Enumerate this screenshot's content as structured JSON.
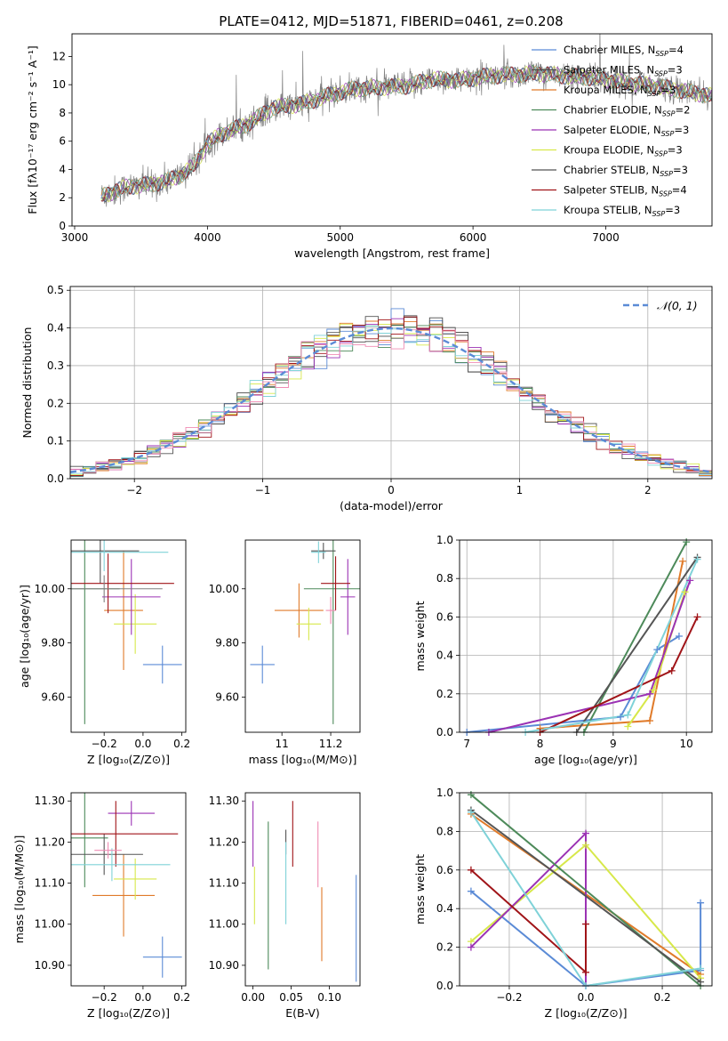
{
  "figure": {
    "title": "PLATE=0412, MJD=51871, FIBERID=0461, z=0.208"
  },
  "models": [
    {
      "name": "Chabrier MILES",
      "nssp": "4",
      "color": "#5b8bd6"
    },
    {
      "name": "Salpeter MILES",
      "nssp": "3",
      "color": "#4a4a4a"
    },
    {
      "name": "Kroupa MILES",
      "nssp": "3",
      "color": "#e07b2a"
    },
    {
      "name": "Chabrier ELODIE",
      "nssp": "2",
      "color": "#4d8a5a"
    },
    {
      "name": "Salpeter ELODIE",
      "nssp": "3",
      "color": "#9b32b4"
    },
    {
      "name": "Kroupa ELODIE",
      "nssp": "3",
      "color": "#d7e84a"
    },
    {
      "name": "Chabrier STELIB",
      "nssp": "3",
      "color": "#555555"
    },
    {
      "name": "Salpeter STELIB",
      "nssp": "4",
      "color": "#a01418"
    },
    {
      "name": "Kroupa STELIB",
      "nssp": "3",
      "color": "#7fd2d8"
    }
  ],
  "chart_data": [
    {
      "id": "spectrum",
      "type": "line",
      "xlabel": "wavelength [Angstrom, rest frame]",
      "ylabel": "Flux [fλ10⁻¹⁷ erg cm⁻² s⁻¹ A⁻¹]",
      "xlim": [
        2980,
        7800
      ],
      "ylim": [
        0,
        13.6
      ],
      "xticks": [
        3000,
        4000,
        5000,
        6000,
        7000
      ],
      "yticks": [
        0,
        2,
        4,
        6,
        8,
        10,
        12
      ],
      "data_range": [
        3200,
        7800
      ],
      "data_color": "#808080",
      "continuum": {
        "x": [
          3200,
          3400,
          3550,
          3700,
          3800,
          3900,
          4000,
          4100,
          4300,
          4500,
          4700,
          4900,
          5100,
          5300,
          5500,
          5700,
          5900,
          6100,
          6300,
          6500,
          6700,
          6900,
          7100,
          7300,
          7500,
          7800
        ],
        "y": [
          2.1,
          2.8,
          2.9,
          3.2,
          3.6,
          4.3,
          5.8,
          6.5,
          7.2,
          8.4,
          8.6,
          9.2,
          9.7,
          9.8,
          9.9,
          10.4,
          10.3,
          10.6,
          10.7,
          10.8,
          10.6,
          10.5,
          10.2,
          10.0,
          9.7,
          9.2
        ]
      },
      "legend_position": "upper-right"
    },
    {
      "id": "residuals",
      "type": "histogram",
      "xlabel": "(data-model)/error",
      "ylabel": "Normed distribution",
      "xlim": [
        -2.5,
        2.5
      ],
      "ylim": [
        0,
        0.51
      ],
      "xticks": [
        -2,
        -1,
        0,
        1,
        2
      ],
      "xtick_labels": [
        "−2",
        "−1",
        "0",
        "1",
        "2"
      ],
      "yticks": [
        0.0,
        0.1,
        0.2,
        0.3,
        0.4,
        0.5
      ],
      "bins": 50,
      "reference_label": "𝒩(0, 1)",
      "reference_color": "#5b8bd6",
      "grid": true,
      "legend_position": "upper-right"
    },
    {
      "id": "age-vs-z",
      "type": "errorbar",
      "xlabel": "Z [log₁₀(Z/Z⊙)]",
      "ylabel": "age  [log₁₀(age/yr)]",
      "xlim": [
        -0.37,
        0.22
      ],
      "ylim": [
        9.47,
        10.18
      ],
      "xticks": [
        -0.2,
        0.0,
        0.2
      ],
      "xtick_labels": [
        "−0.2",
        "0.0",
        "0.2"
      ],
      "yticks": [
        9.6,
        9.8,
        10.0
      ],
      "points": [
        {
          "c": "#5b8bd6",
          "x": 0.1,
          "dx": 0.1,
          "y": 9.72,
          "dy": 0.07
        },
        {
          "c": "#e07b2a",
          "x": -0.1,
          "dx": 0.1,
          "y": 9.92,
          "dy": 0.22
        },
        {
          "c": "#d7e84a",
          "x": -0.04,
          "dx": 0.11,
          "y": 9.87,
          "dy": 0.11
        },
        {
          "c": "#9b32b4",
          "x": -0.06,
          "dx": 0.15,
          "y": 9.97,
          "dy": 0.14
        },
        {
          "c": "#4d8a5a",
          "x": -0.3,
          "dx": 0.18,
          "y": 10.0,
          "dy": 0.5
        },
        {
          "c": "#555555",
          "x": -0.22,
          "dx": 0.2,
          "y": 10.14,
          "dy": 0.12
        },
        {
          "c": "#a01418",
          "x": -0.18,
          "dx": 0.34,
          "y": 10.02,
          "dy": 0.11
        },
        {
          "c": "#7fd2d8",
          "x": -0.2,
          "dx": 0.33,
          "y": 10.135,
          "dy": 0.07
        },
        {
          "c": "#808080",
          "x": -0.2,
          "dx": 0.3,
          "y": 10.0,
          "dy": 0.05
        }
      ]
    },
    {
      "id": "age-vs-mass",
      "type": "errorbar",
      "xlabel": "mass [log₁₀(M/M⊙)]",
      "xlim": [
        10.85,
        11.32
      ],
      "ylim": [
        9.47,
        10.18
      ],
      "xticks": [
        11.0,
        11.2
      ],
      "yticks": [
        9.6,
        9.8,
        10.0
      ],
      "points": [
        {
          "c": "#5b8bd6",
          "x": 10.92,
          "dx": 0.05,
          "y": 9.72,
          "dy": 0.07
        },
        {
          "c": "#e07b2a",
          "x": 11.07,
          "dx": 0.1,
          "y": 9.92,
          "dy": 0.1
        },
        {
          "c": "#d7e84a",
          "x": 11.11,
          "dx": 0.05,
          "y": 9.87,
          "dy": 0.06
        },
        {
          "c": "#9b32b4",
          "x": 11.27,
          "dx": 0.03,
          "y": 9.97,
          "dy": 0.14
        },
        {
          "c": "#4d8a5a",
          "x": 11.21,
          "dx": 0.12,
          "y": 10.0,
          "dy": 0.5
        },
        {
          "c": "#555555",
          "x": 11.17,
          "dx": 0.05,
          "y": 10.14,
          "dy": 0.03
        },
        {
          "c": "#a01418",
          "x": 11.22,
          "dx": 0.06,
          "y": 10.02,
          "dy": 0.1
        },
        {
          "c": "#7fd2d8",
          "x": 11.15,
          "dx": 0.03,
          "y": 10.135,
          "dy": 0.04
        },
        {
          "c": "#f08cb4",
          "x": 11.2,
          "dx": 0.02,
          "y": 9.92,
          "dy": 0.05
        }
      ]
    },
    {
      "id": "mass-weight-vs-age",
      "type": "line",
      "xlabel": "age  [log₁₀(age/yr)]",
      "ylabel": "mass weight",
      "xlim": [
        6.9,
        10.35
      ],
      "ylim": [
        0,
        1.0
      ],
      "xticks": [
        7,
        8,
        9,
        10
      ],
      "yticks": [
        0.0,
        0.2,
        0.4,
        0.6,
        0.8,
        1.0
      ],
      "grid": true,
      "series": [
        {
          "c": "#5b8bd6",
          "x": [
            7.0,
            9.1,
            9.6,
            9.9
          ],
          "y": [
            0.0,
            0.08,
            0.43,
            0.5
          ]
        },
        {
          "c": "#e07b2a",
          "x": [
            8.0,
            9.5,
            9.95
          ],
          "y": [
            0.02,
            0.06,
            0.89
          ]
        },
        {
          "c": "#d7e84a",
          "x": [
            9.2,
            9.55,
            9.98
          ],
          "y": [
            0.03,
            0.22,
            0.73
          ]
        },
        {
          "c": "#9b32b4",
          "x": [
            7.3,
            9.5,
            10.05
          ],
          "y": [
            0.0,
            0.2,
            0.79
          ]
        },
        {
          "c": "#4d8a5a",
          "x": [
            8.6,
            10.0
          ],
          "y": [
            0.0,
            0.99
          ]
        },
        {
          "c": "#555555",
          "x": [
            8.5,
            10.15
          ],
          "y": [
            0.0,
            0.91
          ]
        },
        {
          "c": "#a01418",
          "x": [
            8.0,
            9.8,
            10.15
          ],
          "y": [
            0.0,
            0.32,
            0.6
          ]
        },
        {
          "c": "#7fd2d8",
          "x": [
            7.8,
            9.2,
            10.15
          ],
          "y": [
            0.0,
            0.09,
            0.9
          ]
        }
      ]
    },
    {
      "id": "mass-vs-z",
      "type": "errorbar",
      "xlabel": "Z [log₁₀(Z/Z⊙)]",
      "ylabel": "mass [log₁₀(M/M⊙)]",
      "xlim": [
        -0.37,
        0.22
      ],
      "ylim": [
        10.85,
        11.32
      ],
      "xticks": [
        -0.2,
        0.0,
        0.2
      ],
      "xtick_labels": [
        "−0.2",
        "0.0",
        "0.2"
      ],
      "yticks": [
        10.9,
        11.0,
        11.1,
        11.2,
        11.3
      ],
      "points": [
        {
          "c": "#5b8bd6",
          "x": 0.1,
          "dx": 0.1,
          "y": 10.92,
          "dy": 0.05
        },
        {
          "c": "#e07b2a",
          "x": -0.1,
          "dx": 0.16,
          "y": 11.07,
          "dy": 0.1
        },
        {
          "c": "#d7e84a",
          "x": -0.04,
          "dx": 0.11,
          "y": 11.11,
          "dy": 0.05
        },
        {
          "c": "#9b32b4",
          "x": -0.06,
          "dx": 0.12,
          "y": 11.27,
          "dy": 0.03
        },
        {
          "c": "#4d8a5a",
          "x": -0.3,
          "dx": 0.12,
          "y": 11.21,
          "dy": 0.12
        },
        {
          "c": "#555555",
          "x": -0.2,
          "dx": 0.2,
          "y": 11.17,
          "dy": 0.05
        },
        {
          "c": "#a01418",
          "x": -0.14,
          "dx": 0.32,
          "y": 11.22,
          "dy": 0.08
        },
        {
          "c": "#7fd2d8",
          "x": -0.16,
          "dx": 0.3,
          "y": 11.145,
          "dy": 0.04
        },
        {
          "c": "#f08cb4",
          "x": -0.18,
          "dx": 0.07,
          "y": 11.18,
          "dy": 0.02
        }
      ]
    },
    {
      "id": "mass-vs-ebv",
      "type": "errorbar",
      "xlabel": "E(B-V)",
      "xlim": [
        -0.01,
        0.14
      ],
      "ylim": [
        10.85,
        11.32
      ],
      "xticks": [
        0.0,
        0.05,
        0.1
      ],
      "xtick_labels": [
        "0.00",
        "0.05",
        "0.10"
      ],
      "yticks": [
        10.9,
        11.0,
        11.1,
        11.2,
        11.3
      ],
      "points": [
        {
          "c": "#5b8bd6",
          "x": 0.135,
          "dx": 0,
          "y": 10.99,
          "dy": 0.13
        },
        {
          "c": "#e07b2a",
          "x": 0.09,
          "dx": 0,
          "y": 11.0,
          "dy": 0.09
        },
        {
          "c": "#d7e84a",
          "x": 0.002,
          "dx": 0,
          "y": 11.07,
          "dy": 0.07
        },
        {
          "c": "#9b32b4",
          "x": 0.0,
          "dx": 0,
          "y": 11.22,
          "dy": 0.08
        },
        {
          "c": "#4d8a5a",
          "x": 0.02,
          "dx": 0,
          "y": 11.07,
          "dy": 0.18
        },
        {
          "c": "#555555",
          "x": 0.043,
          "dx": 0,
          "y": 11.2,
          "dy": 0.03
        },
        {
          "c": "#a01418",
          "x": 0.052,
          "dx": 0,
          "y": 11.22,
          "dy": 0.08
        },
        {
          "c": "#7fd2d8",
          "x": 0.043,
          "dx": 0,
          "y": 11.1,
          "dy": 0.1
        },
        {
          "c": "#f08cb4",
          "x": 0.085,
          "dx": 0,
          "y": 11.17,
          "dy": 0.08
        }
      ]
    },
    {
      "id": "mass-weight-vs-z",
      "type": "line",
      "xlabel": "Z [log₁₀(Z/Z⊙)]",
      "ylabel": "mass weight",
      "xlim": [
        -0.33,
        0.33
      ],
      "ylim": [
        0,
        1.0
      ],
      "xticks": [
        -0.2,
        0.0,
        0.2
      ],
      "xtick_labels": [
        "−0.2",
        "0.0",
        "0.2"
      ],
      "yticks": [
        0.0,
        0.2,
        0.4,
        0.6,
        0.8,
        1.0
      ],
      "grid": true,
      "series": [
        {
          "c": "#5b8bd6",
          "x": [
            -0.3,
            0.0,
            0.3,
            0.3
          ],
          "y": [
            0.49,
            0.0,
            0.08,
            0.43
          ]
        },
        {
          "c": "#e07b2a",
          "x": [
            -0.3,
            0.3
          ],
          "y": [
            0.89,
            0.06
          ]
        },
        {
          "c": "#d7e84a",
          "x": [
            -0.3,
            0.0,
            0.3
          ],
          "y": [
            0.23,
            0.73,
            0.04
          ]
        },
        {
          "c": "#9b32b4",
          "x": [
            -0.3,
            0.0,
            0.0
          ],
          "y": [
            0.2,
            0.79,
            0.0
          ]
        },
        {
          "c": "#4d8a5a",
          "x": [
            -0.3,
            0.3
          ],
          "y": [
            0.99,
            0.0
          ]
        },
        {
          "c": "#555555",
          "x": [
            -0.3,
            0.3
          ],
          "y": [
            0.91,
            0.02
          ]
        },
        {
          "c": "#a01418",
          "x": [
            -0.3,
            0.0,
            0.0
          ],
          "y": [
            0.6,
            0.07,
            0.32
          ]
        },
        {
          "c": "#7fd2d8",
          "x": [
            -0.3,
            0.0,
            0.3
          ],
          "y": [
            0.9,
            0.0,
            0.09
          ]
        }
      ]
    }
  ]
}
